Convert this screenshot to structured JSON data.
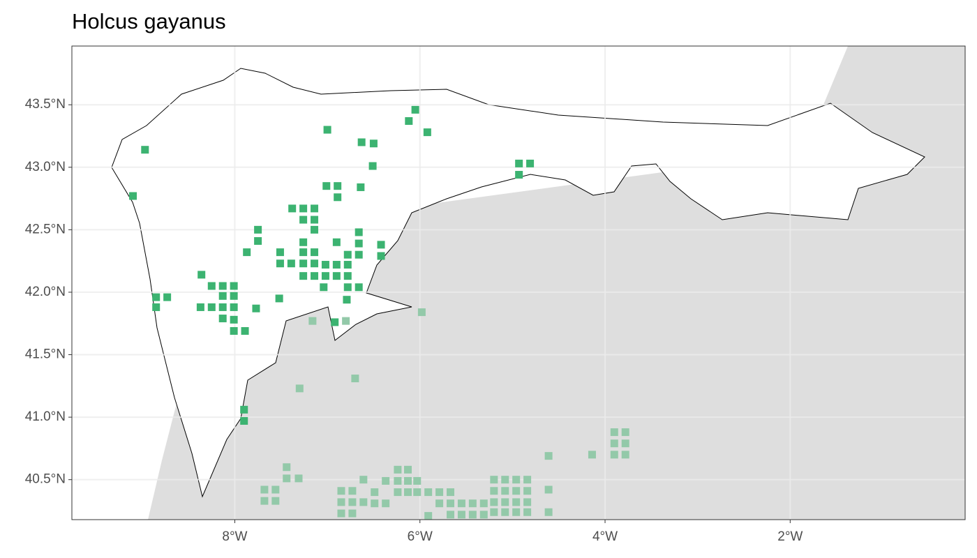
{
  "chart_data": {
    "type": "scatter",
    "title": "Holcus gayanus",
    "xlim": [
      -9.76,
      -0.11
    ],
    "ylim": [
      40.18,
      43.97
    ],
    "xticks": [
      {
        "value": -8,
        "label": "8°W"
      },
      {
        "value": -6,
        "label": "6°W"
      },
      {
        "value": -4,
        "label": "4°W"
      },
      {
        "value": -2,
        "label": "2°W"
      }
    ],
    "yticks": [
      {
        "value": 40.5,
        "label": "40.5°N"
      },
      {
        "value": 41.0,
        "label": "41.0°N"
      },
      {
        "value": 41.5,
        "label": "41.5°N"
      },
      {
        "value": 42.0,
        "label": "42.0°N"
      },
      {
        "value": 42.5,
        "label": "42.5°N"
      },
      {
        "value": 43.0,
        "label": "43.0°N"
      },
      {
        "value": 43.5,
        "label": "43.5°N"
      }
    ],
    "grid": true,
    "series": [
      {
        "color": "#3cb371",
        "x": [
          -8.97,
          -7.0,
          -6.05,
          -6.12,
          -5.92,
          -6.63,
          -6.5,
          -6.51,
          -4.93,
          -4.81,
          -4.93,
          -9.1,
          -7.01,
          -6.89,
          -6.89,
          -6.64,
          -7.38,
          -7.26,
          -7.14,
          -7.26,
          -7.14,
          -7.14,
          -7.75,
          -7.75,
          -7.87,
          -7.26,
          -6.9,
          -6.66,
          -6.66,
          -6.42,
          -6.42,
          -7.51,
          -7.26,
          -7.14,
          -6.66,
          -6.78,
          -7.51,
          -7.39,
          -7.26,
          -7.14,
          -7.02,
          -6.9,
          -6.78,
          -7.26,
          -7.14,
          -7.02,
          -6.9,
          -6.78,
          -8.36,
          -8.25,
          -8.13,
          -8.01,
          -7.04,
          -6.78,
          -6.66,
          -8.85,
          -8.73,
          -8.13,
          -8.01,
          -7.52,
          -6.79,
          -8.85,
          -8.37,
          -8.25,
          -8.13,
          -8.01,
          -7.77,
          -8.13,
          -8.01,
          -6.92,
          -8.01,
          -7.89,
          -7.9,
          -7.9
        ],
        "y": [
          43.14,
          43.3,
          43.46,
          43.37,
          43.28,
          43.2,
          43.19,
          43.01,
          43.03,
          43.03,
          42.94,
          42.77,
          42.85,
          42.85,
          42.76,
          42.84,
          42.67,
          42.67,
          42.67,
          42.58,
          42.58,
          42.5,
          42.5,
          42.41,
          42.32,
          42.4,
          42.4,
          42.48,
          42.39,
          42.38,
          42.29,
          42.32,
          42.32,
          42.32,
          42.3,
          42.3,
          42.23,
          42.23,
          42.23,
          42.23,
          42.22,
          42.22,
          42.22,
          42.13,
          42.13,
          42.13,
          42.13,
          42.13,
          42.14,
          42.05,
          42.05,
          42.05,
          42.04,
          42.04,
          42.04,
          41.96,
          41.96,
          41.97,
          41.97,
          41.95,
          41.94,
          41.88,
          41.88,
          41.88,
          41.88,
          41.88,
          41.87,
          41.79,
          41.78,
          41.76,
          41.69,
          41.69,
          41.06,
          40.97
        ]
      },
      {
        "color": "#93c9a9",
        "x": [
          -5.98,
          -7.16,
          -6.8,
          -7.3,
          -6.7,
          -7.44,
          -7.44,
          -7.31,
          -7.68,
          -7.56,
          -7.68,
          -7.56,
          -6.85,
          -6.73,
          -6.85,
          -6.73,
          -6.61,
          -6.49,
          -6.37,
          -6.85,
          -6.73,
          -6.61,
          -6.49,
          -6.37,
          -6.24,
          -6.13,
          -6.24,
          -6.13,
          -6.03,
          -6.24,
          -6.13,
          -6.03,
          -5.91,
          -5.79,
          -5.67,
          -5.79,
          -5.67,
          -5.55,
          -5.43,
          -5.31,
          -5.2,
          -5.08,
          -4.96,
          -4.84,
          -5.67,
          -5.55,
          -5.43,
          -5.31,
          -5.2,
          -5.08,
          -4.96,
          -4.84,
          -5.91,
          -5.2,
          -5.08,
          -4.96,
          -4.84,
          -5.2,
          -5.08,
          -4.96,
          -4.84,
          -4.61,
          -4.61,
          -4.61,
          -4.14,
          -3.9,
          -3.78,
          -3.9,
          -3.78,
          -3.9,
          -3.78
        ],
        "y": [
          41.84,
          41.77,
          41.77,
          41.23,
          41.31,
          40.6,
          40.51,
          40.51,
          40.42,
          40.42,
          40.33,
          40.33,
          40.41,
          40.41,
          40.32,
          40.32,
          40.32,
          40.31,
          40.31,
          40.23,
          40.23,
          40.5,
          40.4,
          40.49,
          40.58,
          40.58,
          40.49,
          40.49,
          40.49,
          40.4,
          40.4,
          40.4,
          40.4,
          40.4,
          40.4,
          40.31,
          40.31,
          40.31,
          40.31,
          40.31,
          40.32,
          40.32,
          40.32,
          40.32,
          40.22,
          40.22,
          40.22,
          40.22,
          40.24,
          40.24,
          40.24,
          40.24,
          40.21,
          40.5,
          40.5,
          40.5,
          40.5,
          40.41,
          40.41,
          40.41,
          40.41,
          40.42,
          40.24,
          40.69,
          40.7,
          40.88,
          40.88,
          40.79,
          40.79,
          40.7,
          40.7
        ]
      }
    ]
  }
}
